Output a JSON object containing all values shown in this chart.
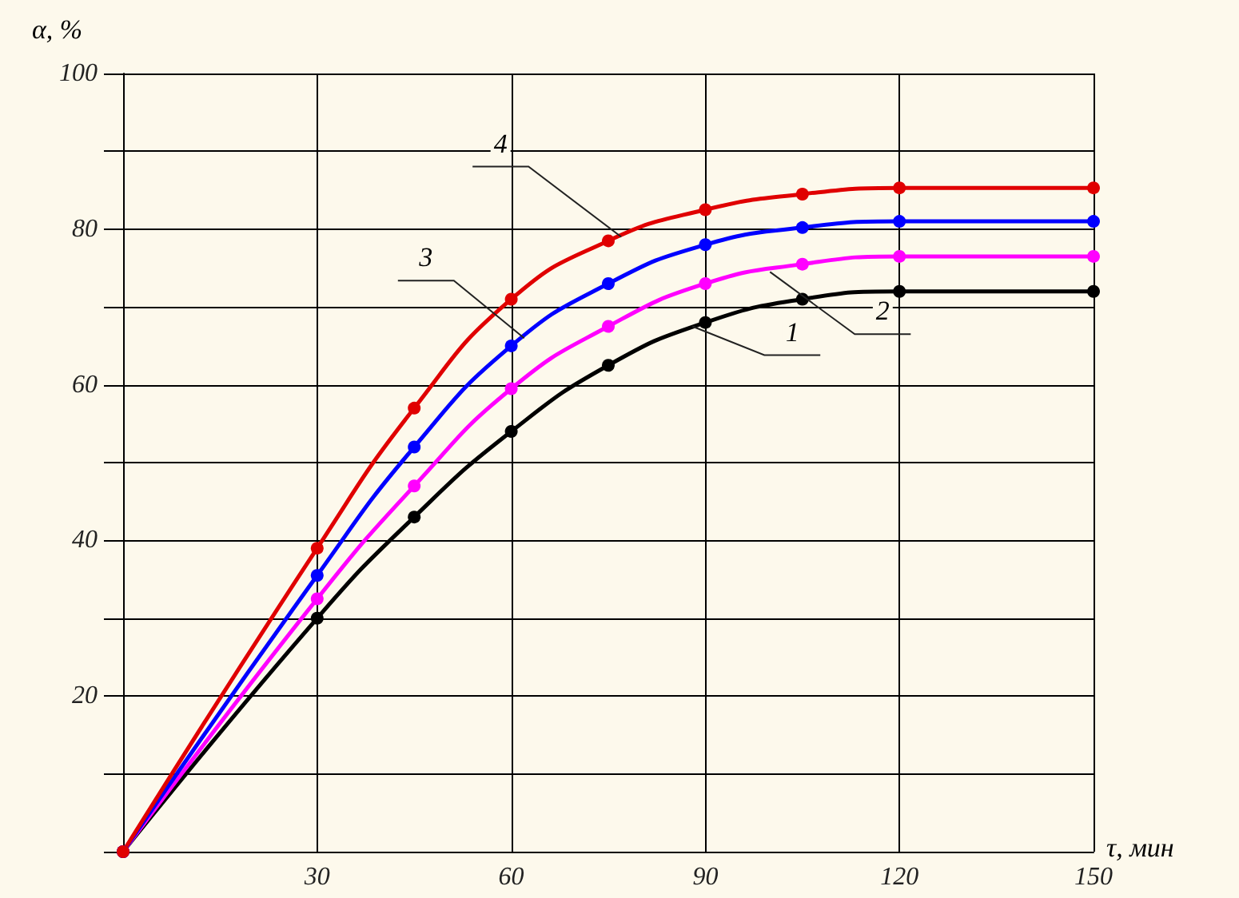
{
  "chart_data": {
    "type": "line",
    "xlabel": "τ, мин",
    "ylabel": "α, %",
    "x": [
      0,
      30,
      45,
      60,
      75,
      90,
      105,
      120,
      150
    ],
    "series": [
      {
        "color": "#000000",
        "values": [
          0,
          30,
          43,
          54,
          62.5,
          68,
          71,
          72,
          72
        ]
      },
      {
        "color": "#ff00ff",
        "values": [
          0,
          32.5,
          47,
          59.5,
          67.5,
          73,
          75.5,
          76.5,
          76.5
        ]
      },
      {
        "color": "#0000ff",
        "values": [
          0,
          35.5,
          52,
          65,
          73,
          78,
          80.2,
          81,
          81
        ]
      },
      {
        "color": "#e00000",
        "values": [
          0,
          39,
          57,
          71,
          78.5,
          82.5,
          84.5,
          85.3,
          85.3
        ]
      }
    ],
    "xlim": [
      0,
      150
    ],
    "ylim": [
      0,
      100
    ],
    "xticks": [
      {
        "value": 0,
        "label": null
      },
      30,
      60,
      90,
      120,
      150
    ],
    "yticks": [
      {
        "value": 0,
        "label": null
      },
      {
        "value": 10,
        "label": null
      },
      20,
      {
        "value": 30,
        "label": null
      },
      40,
      {
        "value": 50,
        "label": null
      },
      60,
      {
        "value": 70,
        "label": null
      },
      80,
      {
        "value": 90,
        "label": null
      },
      100
    ],
    "grid": true,
    "marker": "circle",
    "line_style": "solid",
    "annotations": [
      {
        "text": "1",
        "x": 88,
        "y": 67.5
      },
      {
        "text": "2",
        "x": 100,
        "y": 74.5
      },
      {
        "text": "3",
        "x": 62,
        "y": 66
      },
      {
        "text": "4",
        "x": 77,
        "y": 79
      }
    ]
  }
}
